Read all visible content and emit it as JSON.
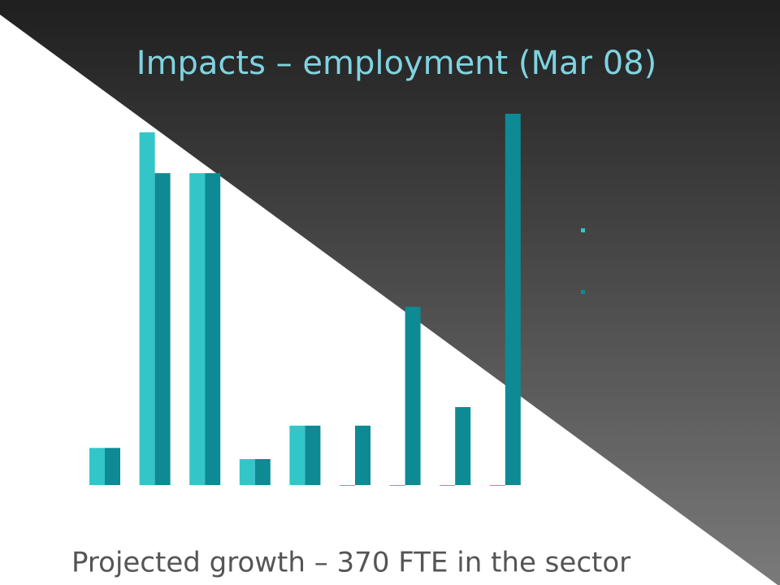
{
  "chart_data": {
    "type": "bar",
    "title": "Impacts – employment (Mar 08)",
    "subtitle": "Projected growth – 370 FTE in the sector",
    "categories": [
      null,
      null,
      null,
      null,
      null,
      null,
      null,
      null,
      null
    ],
    "series": [
      {
        "color": "#33c6c9",
        "values": [
          10,
          95,
          84,
          7,
          16,
          0,
          0,
          0,
          0
        ]
      },
      {
        "color": "#0e8a94",
        "values": [
          10,
          84,
          84,
          7,
          16,
          16,
          48,
          21,
          100
        ]
      }
    ],
    "ylim": [
      0,
      100
    ]
  }
}
